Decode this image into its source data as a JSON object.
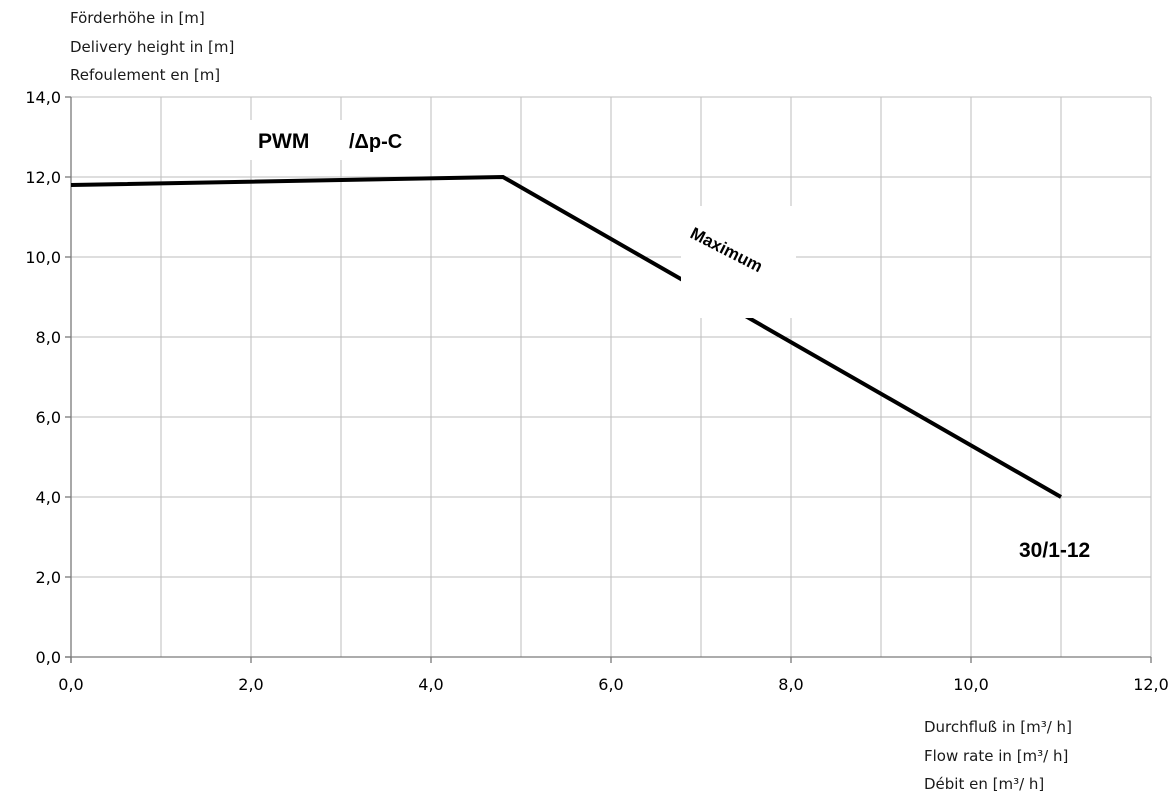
{
  "chart_data": {
    "type": "line",
    "ylabel_lines": [
      "Förderhöhe in [m]",
      "Delivery height in [m]",
      "Refoulement en [m]"
    ],
    "xlabel_lines": [
      "Durchfluß in [m³/ h]",
      "Flow rate in [m³/ h]",
      "Débit en [m³/ h]"
    ],
    "xlim": [
      0,
      12
    ],
    "ylim": [
      0,
      14
    ],
    "x_ticks": [
      0,
      2,
      4,
      6,
      8,
      10,
      12
    ],
    "x_tick_labels": [
      "0,0",
      "2,0",
      "4,0",
      "6,0",
      "8,0",
      "10,0",
      "12,0"
    ],
    "y_ticks": [
      0,
      2,
      4,
      6,
      8,
      10,
      12,
      14
    ],
    "y_tick_labels": [
      "0,0",
      "2,0",
      "4,0",
      "6,0",
      "8,0",
      "10,0",
      "12,0",
      "14,0"
    ],
    "grid": true,
    "grid_x_step": 1,
    "grid_y_step": 2,
    "series": [
      {
        "name": "Maximum",
        "x": [
          0.0,
          4.8,
          11.0
        ],
        "y": [
          11.8,
          12.0,
          4.0
        ],
        "color": "#000000"
      }
    ],
    "annotations": {
      "mode_pwm": "PWM",
      "mode_dpc": "/Δp-C",
      "curve_label": "Maximum",
      "model": "30/1-12"
    }
  }
}
